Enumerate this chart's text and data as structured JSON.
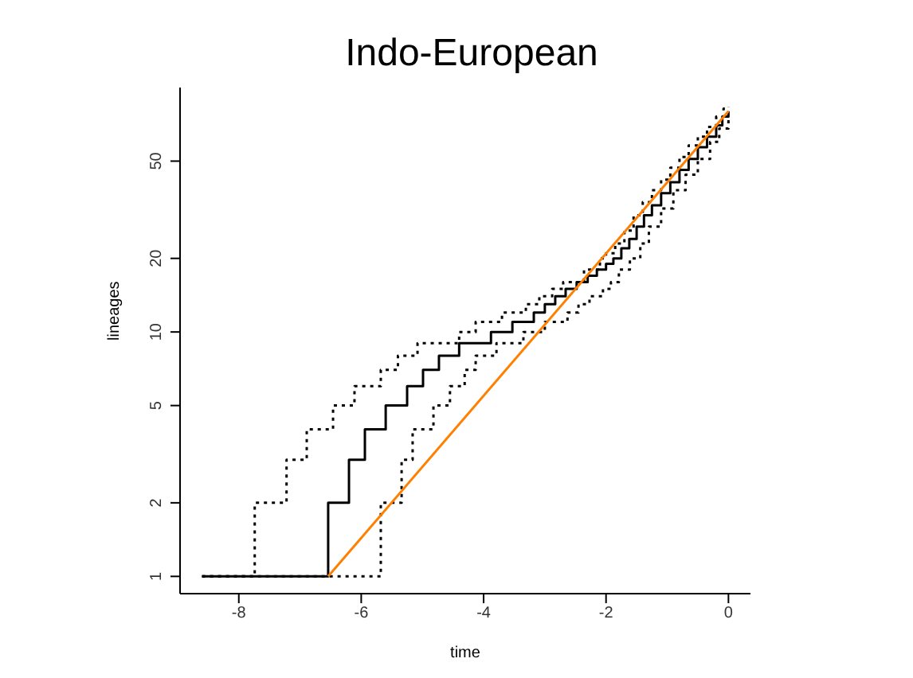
{
  "chart_data": {
    "type": "step",
    "title": "Indo-European",
    "xlabel": "time",
    "ylabel": "lineages",
    "log": "y",
    "xlim": [
      -8.96,
      0.36
    ],
    "xticks": [
      -8,
      -6,
      -4,
      -2,
      0
    ],
    "ylim": [
      0.85,
      100
    ],
    "yticks": [
      1,
      2,
      5,
      10,
      20,
      50
    ],
    "grid": false,
    "legend": false,
    "marker": "none",
    "series": [
      {
        "color": "#000000",
        "line_style": "dotted",
        "x": [
          -8.6,
          -7.74,
          -7.22,
          -6.89,
          -6.46,
          -6.11,
          -5.68,
          -5.4,
          -5.08,
          -4.4,
          -4.13,
          -3.7,
          -3.31,
          -3.09,
          -2.88,
          -2.7,
          -2.36,
          -2.1,
          -2.0,
          -1.85,
          -1.7,
          -1.55,
          -1.4,
          -1.25,
          -1.1,
          -0.95,
          -0.8,
          -0.65,
          -0.5,
          -0.35,
          -0.2,
          -0.08,
          0
        ],
        "values": [
          1,
          2,
          3,
          4,
          5,
          6,
          7,
          8,
          9,
          10,
          11,
          12,
          13,
          14,
          15,
          16,
          18,
          20,
          21,
          23,
          26,
          30,
          34,
          38,
          42,
          47,
          52,
          58,
          63,
          69,
          76,
          82,
          83
        ]
      },
      {
        "color": "#000000",
        "line_style": "solid",
        "x": [
          -8.6,
          -6.54,
          -6.2,
          -5.94,
          -5.6,
          -5.25,
          -4.99,
          -4.73,
          -4.4,
          -3.88,
          -3.53,
          -3.18,
          -3.0,
          -2.83,
          -2.66,
          -2.48,
          -2.3,
          -2.15,
          -2.0,
          -1.88,
          -1.75,
          -1.62,
          -1.5,
          -1.38,
          -1.25,
          -1.1,
          -0.95,
          -0.8,
          -0.65,
          -0.5,
          -0.35,
          -0.2,
          -0.1,
          0
        ],
        "values": [
          1,
          2,
          3,
          4,
          5,
          6,
          7,
          8,
          9,
          10,
          11,
          12,
          13,
          14,
          15,
          16,
          17,
          18,
          19,
          20,
          22,
          24,
          27,
          30,
          33,
          37,
          41,
          46,
          51,
          57,
          63,
          70,
          76,
          80
        ]
      },
      {
        "color": "#000000",
        "line_style": "dotted",
        "x": [
          -8.6,
          -5.68,
          -5.34,
          -5.16,
          -4.82,
          -4.55,
          -4.31,
          -4.13,
          -3.79,
          -3.35,
          -3.0,
          -2.63,
          -2.45,
          -2.27,
          -2.05,
          -1.92,
          -1.79,
          -1.61,
          -1.44,
          -1.3,
          -1.1,
          -0.9,
          -0.7,
          -0.5,
          -0.3,
          -0.15,
          0
        ],
        "values": [
          1,
          2,
          3,
          4,
          5,
          6,
          7,
          8,
          9,
          10,
          11,
          12,
          13,
          14,
          15,
          16,
          18,
          20,
          23,
          27,
          32,
          38,
          44,
          51,
          60,
          68,
          76
        ]
      },
      {
        "type": "line",
        "color": "#ff7f00",
        "line_style": "solid",
        "x": [
          -6.54,
          0
        ],
        "values": [
          1,
          80
        ]
      }
    ]
  }
}
